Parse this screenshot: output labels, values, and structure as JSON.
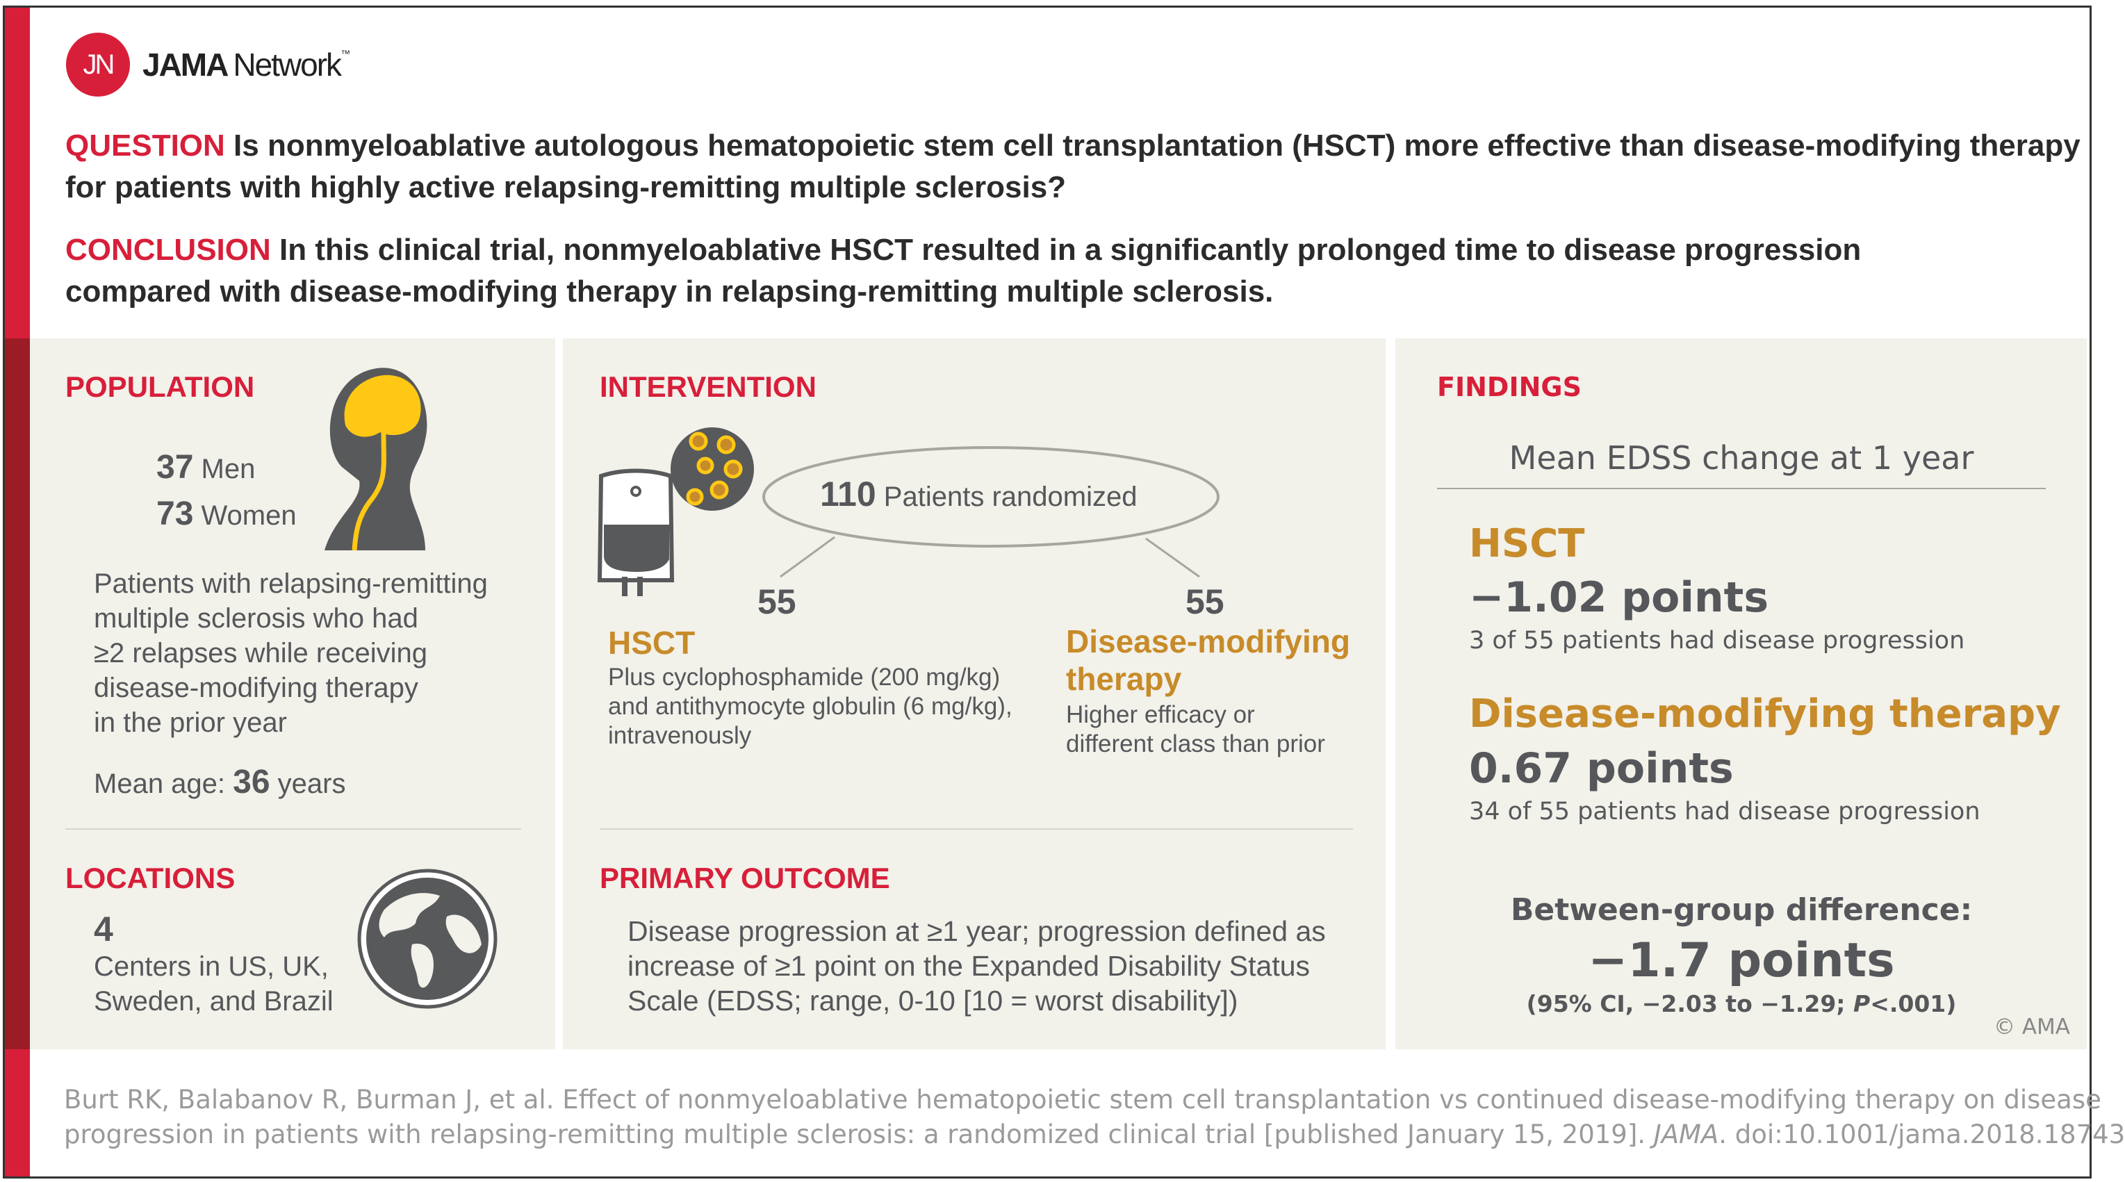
{
  "brand": {
    "logo_mark": "JN",
    "name_bold": "JAMA",
    "name_light": "Network",
    "tm": "™"
  },
  "question": {
    "label": "QUESTION",
    "lines": [
      "Is nonmyeloablative autologous hematopoietic stem cell transplantation (HSCT) more effective than disease-modifying therapy",
      "for patients with highly active relapsing-remitting multiple sclerosis?"
    ]
  },
  "conclusion": {
    "label": "CONCLUSION",
    "lines": [
      "In this clinical trial, nonmyeloablative HSCT resulted in a significantly prolonged time to disease progression",
      "compared with disease-modifying therapy in relapsing-remitting multiple sclerosis."
    ]
  },
  "population": {
    "heading": "POPULATION",
    "men_n": "37",
    "men": "Men",
    "women_n": "73",
    "women": "Women",
    "desc": [
      "Patients with relapsing-remitting",
      "multiple sclerosis who had",
      "≥2 relapses while receiving",
      "disease-modifying therapy",
      "in the prior year"
    ],
    "age_label": "Mean age:",
    "age_n": "36",
    "age_unit": "years",
    "icon": "head-brain-icon"
  },
  "locations": {
    "heading": "LOCATIONS",
    "count": "4",
    "desc": [
      "Centers in US, UK,",
      "Sweden, and Brazil"
    ],
    "icon": "globe-icon"
  },
  "intervention": {
    "heading": "INTERVENTION",
    "total_n": "110",
    "total_label": "Patients randomized",
    "icon": "blood-bag-cells-icon",
    "arms": [
      {
        "n": "55",
        "name": "HSCT",
        "desc": [
          "Plus cyclophosphamide (200 mg/kg)",
          "and antithymocyte globulin (6 mg/kg),",
          "intravenously"
        ]
      },
      {
        "n": "55",
        "name": [
          "Disease-modifying",
          "therapy"
        ],
        "desc": [
          "Higher efficacy or",
          "different class than prior"
        ]
      }
    ]
  },
  "primary_outcome": {
    "heading": "PRIMARY OUTCOME",
    "lines": [
      "Disease progression at ≥1 year; progression defined as",
      "increase of ≥1 point on the Expanded Disability Status",
      "Scale (EDSS; range, 0-10 [10 = worst disability])"
    ]
  },
  "findings": {
    "heading": "FINDINGS",
    "subtitle": "Mean EDSS change at 1 year",
    "groups": [
      {
        "name": "HSCT",
        "value": "−1.02 points",
        "note": "3 of 55 patients had disease progression"
      },
      {
        "name": "Disease-modifying therapy",
        "value": "0.67 points",
        "note": "34 of 55 patients had disease progression"
      }
    ],
    "diff_label": "Between-group difference:",
    "diff_value": "−1.7 points",
    "ci_pre": "(95% CI, −2.03 to −1.29; ",
    "ci_p": "P",
    "ci_post": "<.001)"
  },
  "copyright": "© AMA",
  "citation": {
    "line1": "Burt RK, Balabanov R, Burman J, et al. Effect of nonmyeloablative hematopoietic stem cell transplantation vs continued disease-modifying therapy on disease",
    "line2_pre": "progression in patients with relapsing-remitting multiple sclerosis: a randomized clinical trial [published January 15, 2019]. ",
    "journal": "JAMA",
    "line2_post": ". doi:10.1001/jama.2018.18743"
  },
  "colors": {
    "red": "#d71f3a",
    "dark_red": "#9c1c26",
    "gold": "#c78b2a",
    "panel_bg": "#f2f1ea",
    "text_gray": "#55575a"
  }
}
